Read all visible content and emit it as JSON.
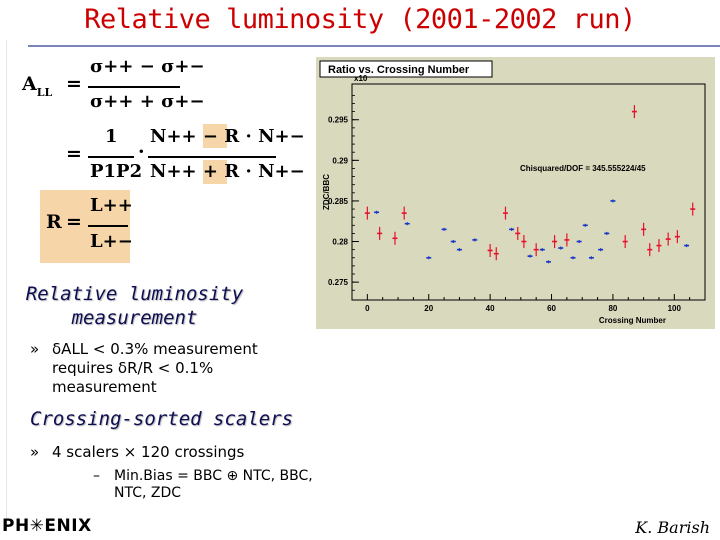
{
  "slide": {
    "title": "Relative luminosity (2001-2002 run)",
    "headings": {
      "lumi": "Relative luminosity measurement",
      "scalers": "Crossing-sorted scalers"
    },
    "bullets": {
      "b1_marker": "»",
      "b1": "δALL < 0.3% measurement requires δR/R < 0.1% measurement",
      "b2_marker": "»",
      "b2": "4 scalers × 120 crossings",
      "sub_marker": "–",
      "sub1": "Min.Bias = BBC ⊕ NTC, BBC, NTC, ZDC"
    },
    "logo": "PH✳ENIX",
    "author": "K. Barish"
  },
  "formulas": {
    "all_lhs": "A",
    "all_sub": "LL",
    "eq": "=",
    "sig_pp": "σ++",
    "minus": "−",
    "plus": "+",
    "sig_pm": "σ+−",
    "one": "1",
    "p1p2": "P1P2",
    "dot": "·",
    "n_pp": "N++",
    "r": "R",
    "n_pm": "N+−",
    "l_pp": "L++",
    "l_pm": "L+−"
  },
  "chart_data": {
    "type": "scatter",
    "title": "Ratio vs. Crossing Number",
    "xlabel": "Crossing Number",
    "ylabel": "ZDC/BBC",
    "exponent_label": "x10",
    "xlim": [
      -5,
      110
    ],
    "ylim": [
      0.2728,
      0.2994
    ],
    "xticks": [
      0,
      20,
      40,
      60,
      80,
      100
    ],
    "yticks": [
      0.275,
      0.28,
      0.285,
      0.29,
      0.295
    ],
    "ytick_labels": [
      "0.275",
      "0.28",
      "0.285",
      "0.29",
      "0.295"
    ],
    "annotation": "Chisquared/DOF = 345.555224/45",
    "grid": false,
    "background_color": "#d9d9bd",
    "colors": {
      "red_series": "#e8102a",
      "blue_series": "#1a38c8"
    },
    "series": [
      {
        "color": "red",
        "x": [
          0,
          4,
          9,
          12,
          40,
          42,
          45,
          49,
          51,
          55,
          61,
          65,
          84,
          87,
          90,
          92,
          95,
          98,
          101,
          106
        ],
        "y": [
          0.2835,
          0.281,
          0.2804,
          0.2835,
          0.2789,
          0.2785,
          0.2835,
          0.281,
          0.28,
          0.279,
          0.28,
          0.2802,
          0.28,
          0.296,
          0.2815,
          0.279,
          0.2795,
          0.2803,
          0.2806,
          0.284
        ],
        "yerr": [
          0.0008,
          0.0008,
          0.0008,
          0.0008,
          0.0008,
          0.0008,
          0.0008,
          0.0008,
          0.0008,
          0.0008,
          0.0008,
          0.0008,
          0.0008,
          0.0008,
          0.0008,
          0.0008,
          0.0008,
          0.0008,
          0.0008,
          0.0008
        ]
      },
      {
        "color": "blue",
        "x": [
          3,
          13,
          20,
          25,
          28,
          30,
          35,
          47,
          53,
          57,
          59,
          63,
          67,
          69,
          71,
          73,
          76,
          78,
          80,
          104
        ],
        "y": [
          0.2836,
          0.2822,
          0.278,
          0.2815,
          0.28,
          0.279,
          0.2802,
          0.2815,
          0.2782,
          0.279,
          0.2775,
          0.2792,
          0.278,
          0.28,
          0.282,
          0.278,
          0.279,
          0.281,
          0.285,
          0.2795
        ],
        "yerr": [
          0.0001,
          0.0001,
          0.0001,
          0.0001,
          0.0001,
          0.0001,
          0.0001,
          0.0001,
          0.0001,
          0.0001,
          0.0001,
          0.0001,
          0.0001,
          0.0001,
          0.0001,
          0.0001,
          0.0001,
          0.0001,
          0.0001,
          0.0001
        ]
      }
    ]
  }
}
